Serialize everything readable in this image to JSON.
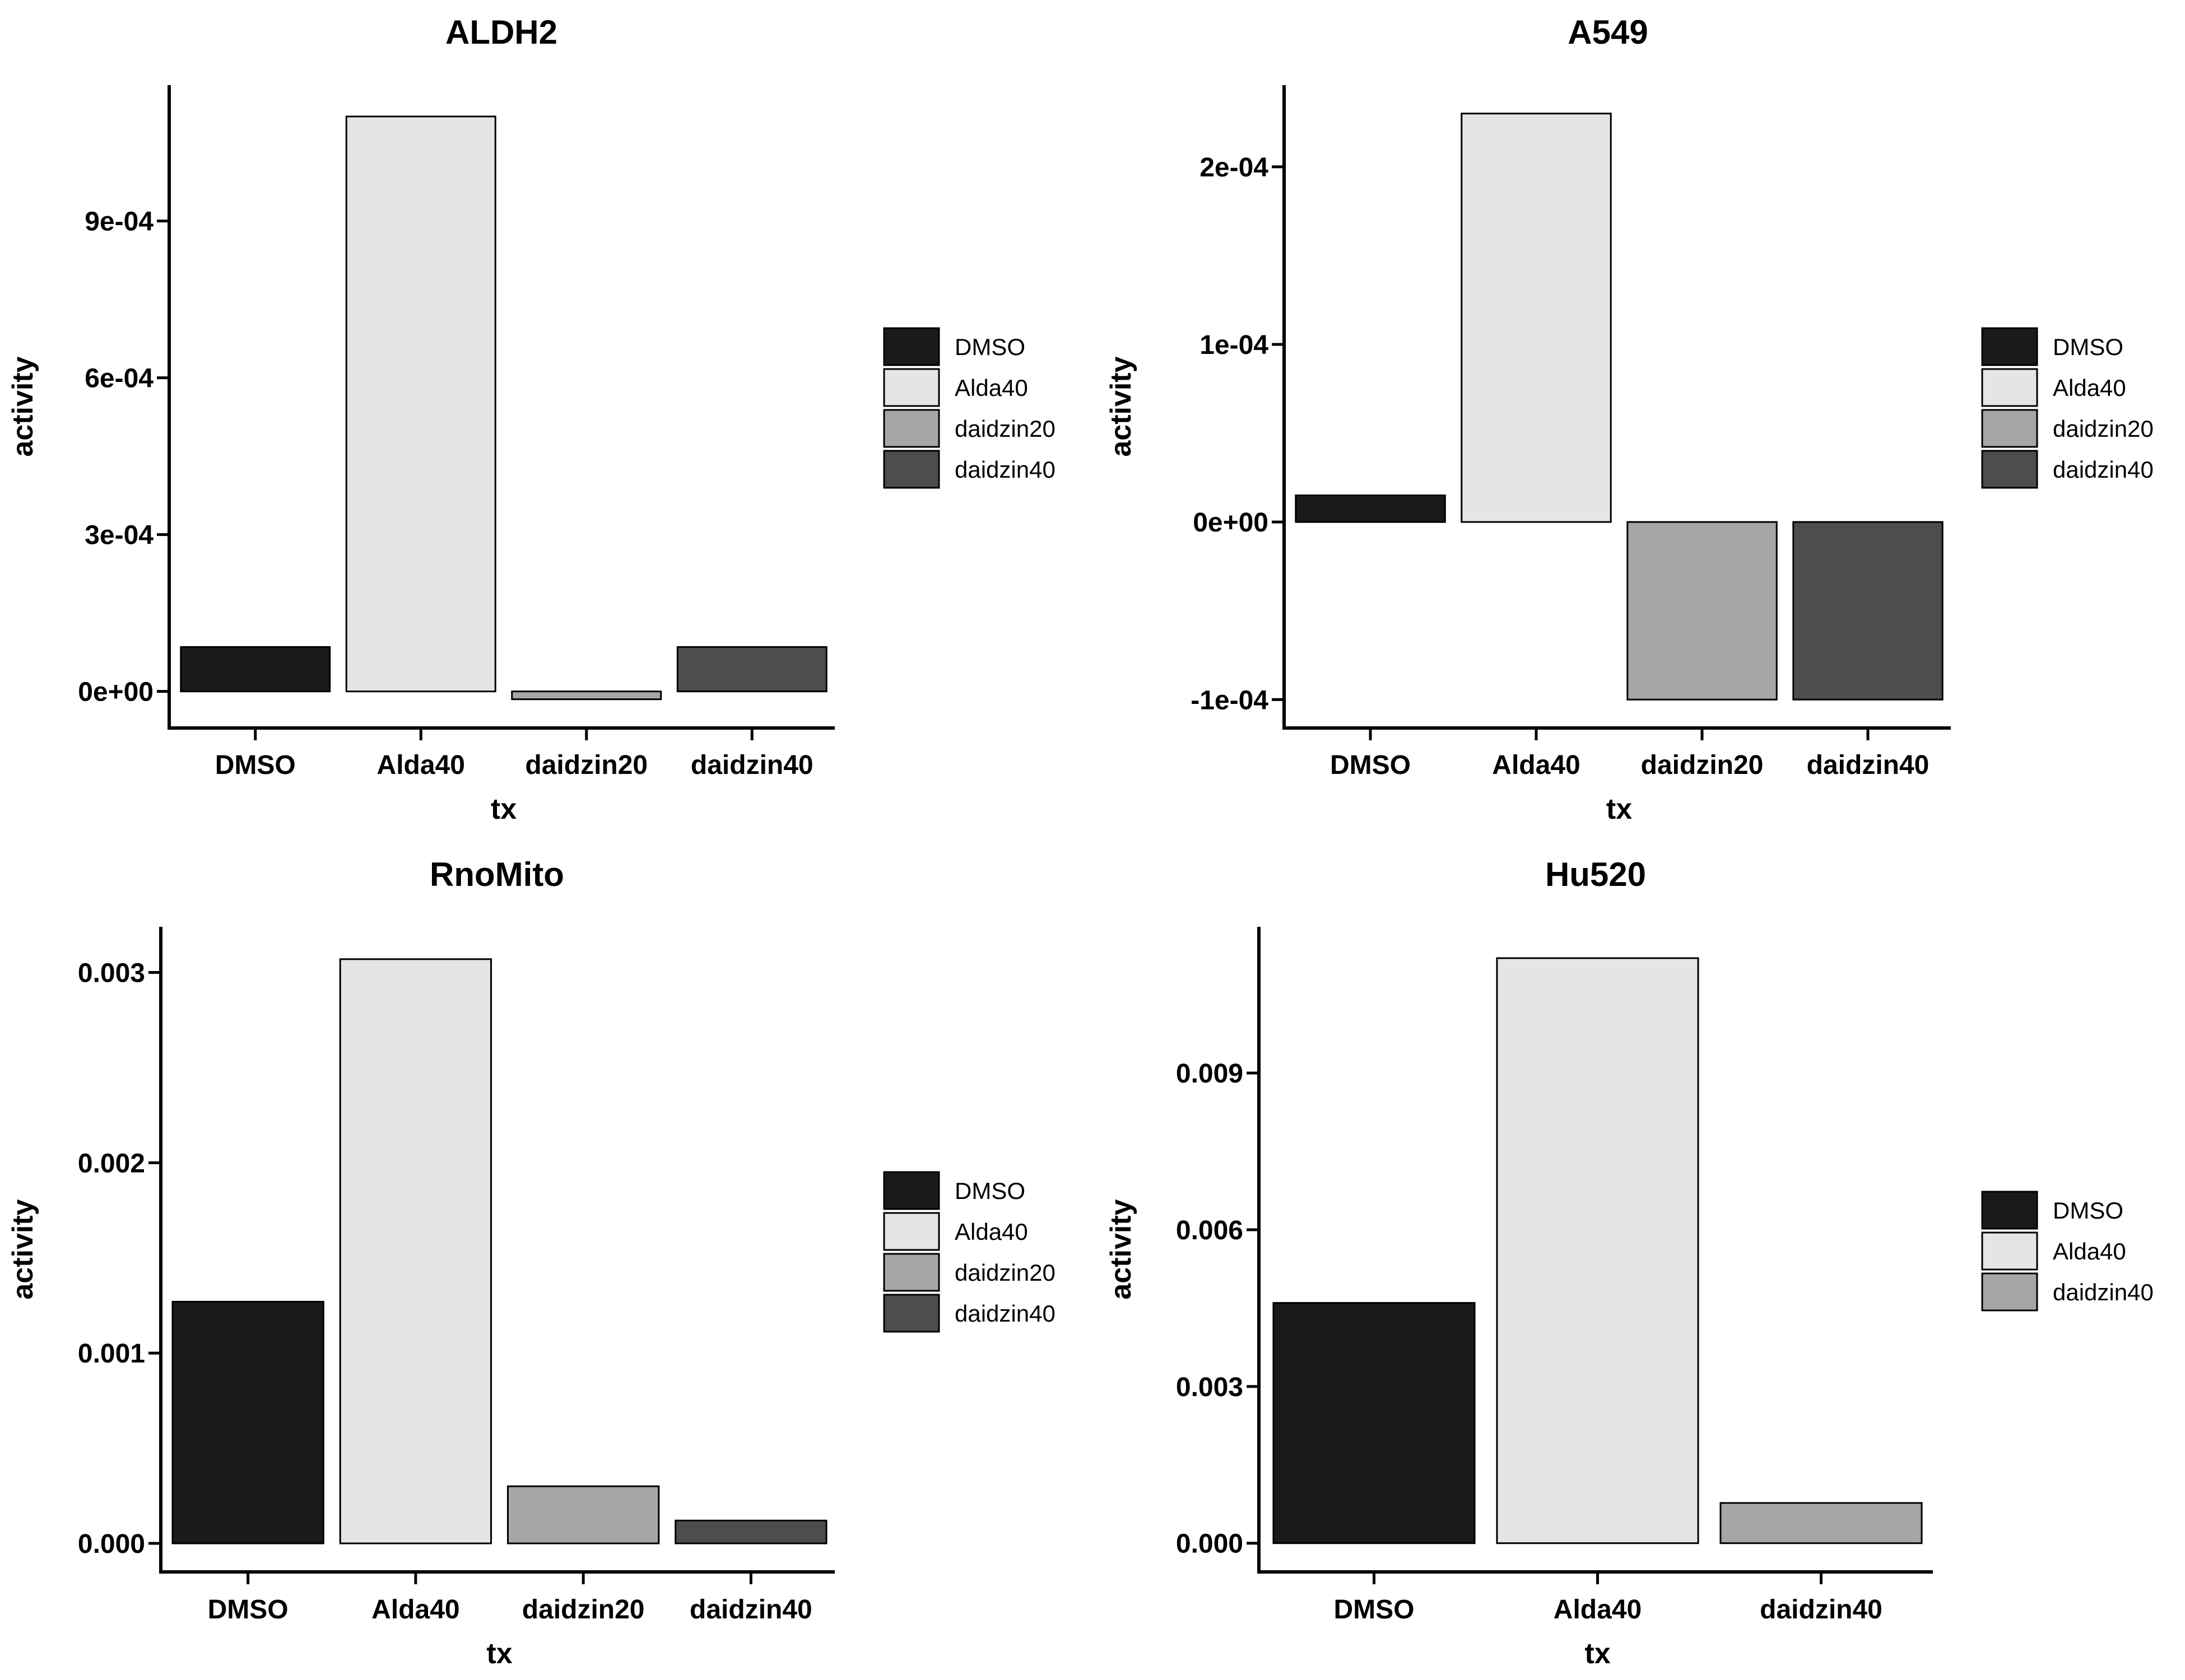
{
  "chart_data": [
    {
      "type": "bar",
      "title": "ALDH2",
      "xlabel": "tx",
      "ylabel": "activity",
      "categories": [
        "DMSO",
        "Alda40",
        "daidzin20",
        "daidzin40"
      ],
      "values": [
        8.5e-05,
        0.0011,
        -1.5e-05,
        8.5e-05
      ],
      "colors": [
        "#1a1a1a",
        "#e5e5e5",
        "#a6a6a6",
        "#4d4d4d"
      ],
      "ylim": [
        -7e-05,
        0.00116
      ],
      "yticks": [
        0,
        0.0003,
        0.0006,
        0.0009
      ],
      "ytick_labels": [
        "0e+00",
        "3e-04",
        "6e-04",
        "9e-04"
      ],
      "legend": {
        "position": "right",
        "items": [
          {
            "label": "DMSO",
            "color": "#1a1a1a"
          },
          {
            "label": "Alda40",
            "color": "#e5e5e5"
          },
          {
            "label": "daidzin20",
            "color": "#a6a6a6"
          },
          {
            "label": "daidzin40",
            "color": "#4d4d4d"
          }
        ]
      },
      "grid": false
    },
    {
      "type": "bar",
      "title": "A549",
      "xlabel": "tx",
      "ylabel": "activity",
      "categories": [
        "DMSO",
        "Alda40",
        "daidzin20",
        "daidzin40"
      ],
      "values": [
        1.5e-05,
        0.00023,
        -0.0001,
        -0.0001
      ],
      "colors": [
        "#1a1a1a",
        "#e5e5e5",
        "#a6a6a6",
        "#4d4d4d"
      ],
      "ylim": [
        -0.000116,
        0.000246
      ],
      "yticks": [
        -0.0001,
        0,
        0.0001,
        0.0002
      ],
      "ytick_labels": [
        "-1e-04",
        "0e+00",
        "1e-04",
        "2e-04"
      ],
      "legend": {
        "position": "right",
        "items": [
          {
            "label": "DMSO",
            "color": "#1a1a1a"
          },
          {
            "label": "Alda40",
            "color": "#e5e5e5"
          },
          {
            "label": "daidzin20",
            "color": "#a6a6a6"
          },
          {
            "label": "daidzin40",
            "color": "#4d4d4d"
          }
        ]
      },
      "grid": false
    },
    {
      "type": "bar",
      "title": "RnoMito",
      "xlabel": "tx",
      "ylabel": "activity",
      "categories": [
        "DMSO",
        "Alda40",
        "daidzin20",
        "daidzin40"
      ],
      "values": [
        0.00127,
        0.00307,
        0.0003,
        0.00012
      ],
      "colors": [
        "#1a1a1a",
        "#e5e5e5",
        "#a6a6a6",
        "#4d4d4d"
      ],
      "ylim": [
        -0.00015,
        0.00324
      ],
      "yticks": [
        0,
        0.001,
        0.002,
        0.003
      ],
      "ytick_labels": [
        "0.000",
        "0.001",
        "0.002",
        "0.003"
      ],
      "legend": {
        "position": "right",
        "items": [
          {
            "label": "DMSO",
            "color": "#1a1a1a"
          },
          {
            "label": "Alda40",
            "color": "#e5e5e5"
          },
          {
            "label": "daidzin20",
            "color": "#a6a6a6"
          },
          {
            "label": "daidzin40",
            "color": "#4d4d4d"
          }
        ]
      },
      "grid": false
    },
    {
      "type": "bar",
      "title": "Hu520",
      "xlabel": "tx",
      "ylabel": "activity",
      "categories": [
        "DMSO",
        "Alda40",
        "daidzin40"
      ],
      "values": [
        0.0046,
        0.0112,
        0.00077
      ],
      "colors": [
        "#1a1a1a",
        "#e5e5e5",
        "#a6a6a6"
      ],
      "ylim": [
        -0.00055,
        0.0118
      ],
      "yticks": [
        0,
        0.003,
        0.006,
        0.009
      ],
      "ytick_labels": [
        "0.000",
        "0.003",
        "0.006",
        "0.009"
      ],
      "legend": {
        "position": "right",
        "items": [
          {
            "label": "DMSO",
            "color": "#1a1a1a"
          },
          {
            "label": "Alda40",
            "color": "#e5e5e5"
          },
          {
            "label": "daidzin40",
            "color": "#a6a6a6"
          }
        ]
      },
      "grid": false
    }
  ]
}
